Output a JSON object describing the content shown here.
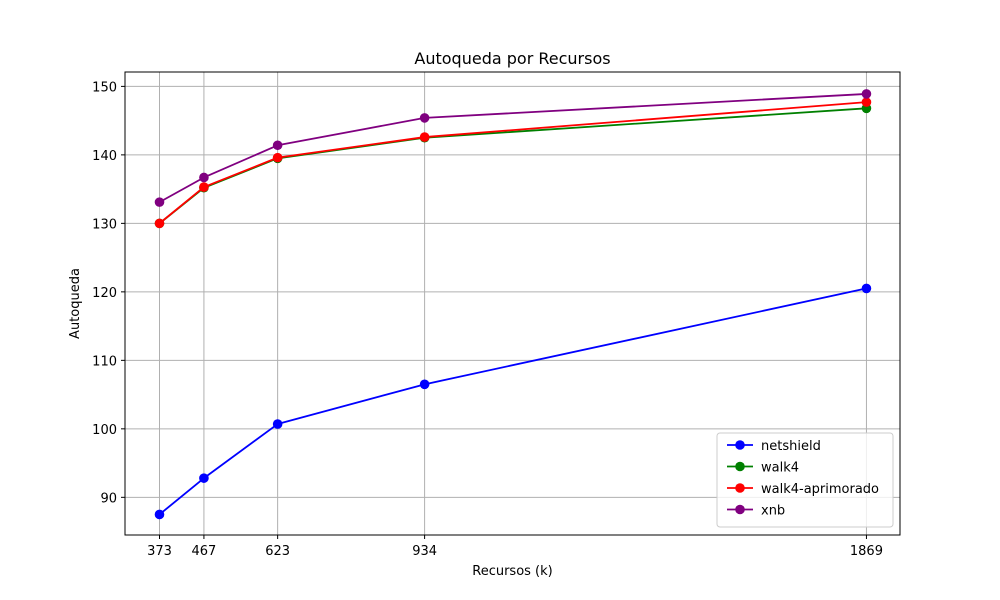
{
  "chart_data": {
    "type": "line",
    "title": "Autoqueda por Recursos",
    "xlabel": "Recursos (k)",
    "ylabel": "Autoqueda",
    "x": [
      373,
      467,
      623,
      934,
      1869
    ],
    "x_tick_labels": [
      "373",
      "467",
      "623",
      "934",
      "1869"
    ],
    "xlim": [
      300,
      1940
    ],
    "ylim": [
      84.5,
      152.1
    ],
    "y_ticks": [
      90,
      100,
      110,
      120,
      130,
      140,
      150
    ],
    "grid": true,
    "legend_position": "bottom-right",
    "series": [
      {
        "name": "netshield",
        "color": "#0000ff",
        "values": [
          87.5,
          92.8,
          100.7,
          106.5,
          120.5
        ]
      },
      {
        "name": "walk4",
        "color": "#008000",
        "values": [
          130.0,
          135.2,
          139.5,
          142.5,
          146.8
        ]
      },
      {
        "name": "walk4-aprimorado",
        "color": "#ff0000",
        "values": [
          130.0,
          135.3,
          139.6,
          142.6,
          147.7
        ]
      },
      {
        "name": "xnb",
        "color": "#800080",
        "values": [
          133.1,
          136.7,
          141.4,
          145.4,
          148.9
        ]
      }
    ]
  }
}
